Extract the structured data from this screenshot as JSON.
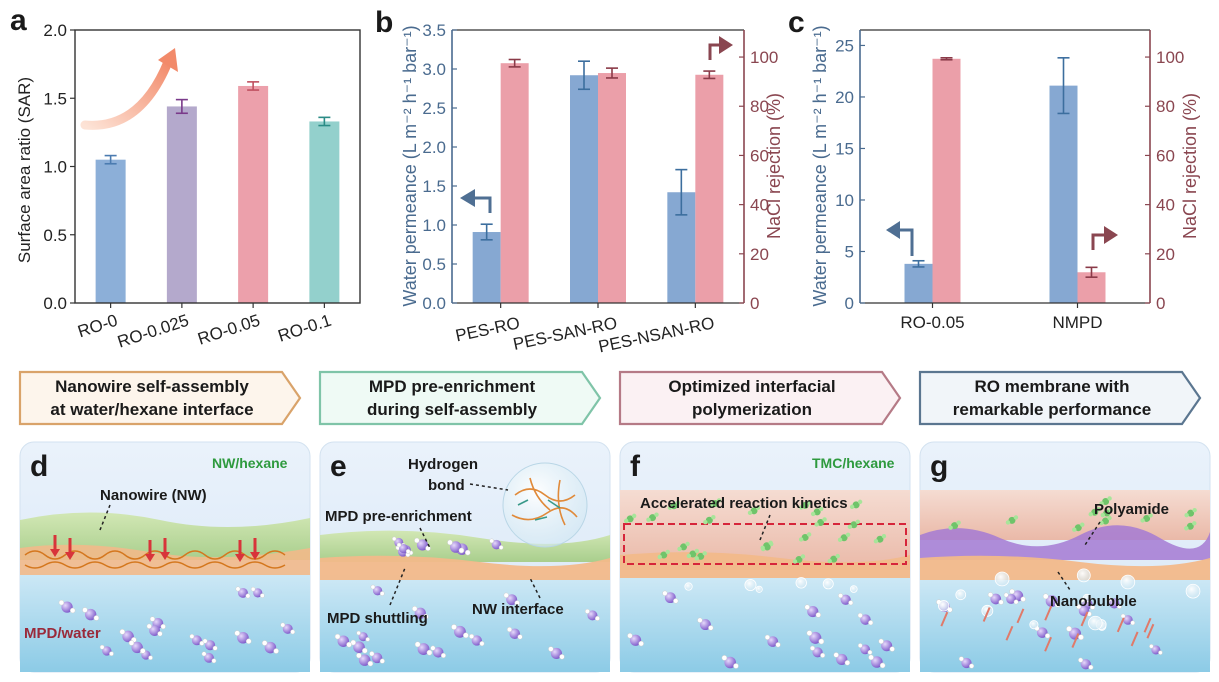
{
  "panels": {
    "a": {
      "letter": "a",
      "ylabel": "Surface area ratio (SAR)",
      "y_ticks": [
        "0.0",
        "0.5",
        "1.0",
        "1.5",
        "2.0"
      ],
      "categories": [
        "RO-0",
        "RO-0.025",
        "RO-0.05",
        "RO-0.1"
      ]
    },
    "b": {
      "letter": "b",
      "ylabel_left": "Water permeance (L m⁻² h⁻¹ bar⁻¹)",
      "ylabel_right": "NaCl rejection (%)",
      "y_ticks_left": [
        "0.0",
        "0.5",
        "1.0",
        "1.5",
        "2.0",
        "2.5",
        "3.0",
        "3.5"
      ],
      "y_ticks_right": [
        "0",
        "20",
        "40",
        "60",
        "80",
        "100"
      ],
      "categories": [
        "PES-RO",
        "PES-SAN-RO",
        "PES-NSAN-RO"
      ]
    },
    "c": {
      "letter": "c",
      "ylabel_left": "Water permeance (L m⁻² h⁻¹ bar⁻¹)",
      "ylabel_right": "NaCl rejection (%)",
      "y_ticks_left": [
        "0",
        "5",
        "10",
        "15",
        "20",
        "25"
      ],
      "y_ticks_right": [
        "0",
        "20",
        "40",
        "60",
        "80",
        "100"
      ],
      "categories": [
        "RO-0.05",
        "NMPD"
      ]
    },
    "d": {
      "letter": "d",
      "top_label": "NW/hexane",
      "nanowire_label": "Nanowire (NW)",
      "bottom_label": "MPD/water"
    },
    "e": {
      "letter": "e",
      "hbond_label_1": "Hydrogen",
      "hbond_label_2": "bond",
      "enrich_label": "MPD pre-enrichment",
      "shuttle_label": "MPD shuttling",
      "interface_label": "NW interface"
    },
    "f": {
      "letter": "f",
      "top_label": "TMC/hexane",
      "kinetics_label": "Accelerated reaction kinetics"
    },
    "g": {
      "letter": "g",
      "polyamide_label": "Polyamide",
      "nanobubble_label": "Nanobubble"
    }
  },
  "banners": [
    {
      "line1": "Nanowire self-assembly",
      "line2": "at water/hexane interface",
      "color": "#d9a36a",
      "fill": "#fdf5ec"
    },
    {
      "line1": "MPD pre-enrichment",
      "line2": "during self-assembly",
      "color": "#7fc4a8",
      "fill": "#effaf5"
    },
    {
      "line1": "Optimized interfacial",
      "line2": "polymerization",
      "color": "#b57a86",
      "fill": "#fbf1f3"
    },
    {
      "line1": "RO membrane with",
      "line2": "remarkable performance",
      "color": "#5b7690",
      "fill": "#f1f5f9"
    }
  ],
  "colors": {
    "blue_bar": "#86a8d2",
    "red_bar": "#eb9fa9",
    "purple_bar": "#b1a6ca",
    "pink_bar": "#eb9fa9",
    "teal_bar": "#8fcfca"
  },
  "chart_data": [
    {
      "panel": "a",
      "type": "bar",
      "categories": [
        "RO-0",
        "RO-0.025",
        "RO-0.05",
        "RO-0.1"
      ],
      "values": [
        1.05,
        1.44,
        1.59,
        1.33
      ],
      "errors": [
        0.03,
        0.05,
        0.03,
        0.03
      ],
      "colors": [
        "#8cafd8",
        "#b4a9cc",
        "#eca0ab",
        "#93d0cc"
      ],
      "ylabel": "Surface area ratio (SAR)",
      "ylim": [
        0,
        2.0
      ]
    },
    {
      "panel": "b",
      "type": "bar",
      "categories": [
        "PES-RO",
        "PES-SAN-RO",
        "PES-NSAN-RO"
      ],
      "series": [
        {
          "axis": "left",
          "values": [
            0.91,
            2.92,
            1.42
          ],
          "errors": [
            0.1,
            0.18,
            0.29
          ]
        },
        {
          "axis": "right",
          "values": [
            97.5,
            93.5,
            92.8
          ],
          "errors": [
            1.5,
            2.0,
            1.5
          ]
        }
      ],
      "ylabel_left": "Water permeance (L m⁻² h⁻¹ bar⁻¹)",
      "ylabel_right": "NaCl rejection (%)",
      "ylim_left": [
        0,
        3.5
      ],
      "ylim_right": [
        0,
        111
      ]
    },
    {
      "panel": "c",
      "type": "bar",
      "categories": [
        "RO-0.05",
        "NMPD"
      ],
      "series": [
        {
          "axis": "left",
          "values": [
            3.8,
            21.1
          ],
          "errors": [
            0.3,
            2.7
          ]
        },
        {
          "axis": "right",
          "values": [
            99.3,
            12.5
          ],
          "errors": [
            0.4,
            2.0
          ]
        }
      ],
      "ylabel_left": "Water permeance (L m⁻² h⁻¹ bar⁻¹)",
      "ylabel_right": "NaCl rejection (%)",
      "ylim_left": [
        0,
        26.5
      ],
      "ylim_right": [
        0,
        111
      ]
    }
  ]
}
